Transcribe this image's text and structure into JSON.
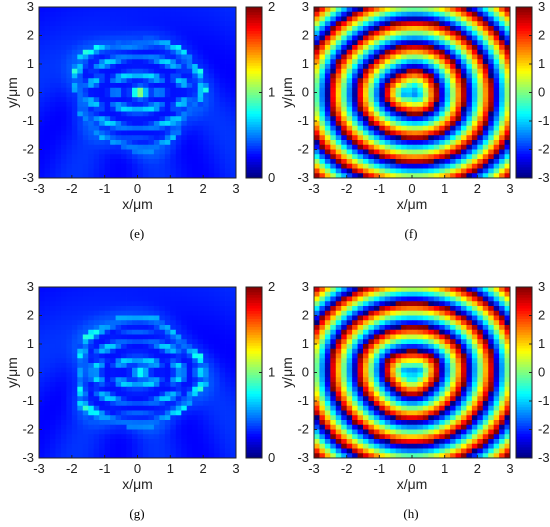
{
  "chart_data": [
    {
      "type": "heatmap",
      "panel": "(e)",
      "quantity": "amplitude",
      "xlabel": "x/μm",
      "ylabel": "y/μm",
      "xlim": [
        -3,
        3
      ],
      "ylim": [
        -3,
        3
      ],
      "xticks": [
        "-3",
        "-2",
        "-1",
        "0",
        "1",
        "2",
        "3"
      ],
      "yticks": [
        "3",
        "2",
        "1",
        "0",
        "-1",
        "-2",
        "-3"
      ],
      "colorbar": {
        "range": [
          0,
          2
        ],
        "ticks": [
          "2",
          "1",
          "0"
        ]
      },
      "colormap": "jet"
    },
    {
      "type": "heatmap",
      "panel": "(f)",
      "quantity": "phase",
      "xlabel": "x/μm",
      "ylabel": "y/μm",
      "xlim": [
        -3,
        3
      ],
      "ylim": [
        -3,
        3
      ],
      "xticks": [
        "-3",
        "-2",
        "-1",
        "0",
        "1",
        "2",
        "3"
      ],
      "yticks": [
        "3",
        "2",
        "1",
        "0",
        "-1",
        "-2",
        "-3"
      ],
      "colorbar": {
        "range": [
          -3,
          3
        ],
        "ticks": [
          "3",
          "2",
          "1",
          "0",
          "-1",
          "-2",
          "-3"
        ]
      },
      "colormap": "jet"
    },
    {
      "type": "heatmap",
      "panel": "(g)",
      "quantity": "amplitude",
      "xlabel": "x/μm",
      "ylabel": "y/μm",
      "xlim": [
        -3,
        3
      ],
      "ylim": [
        -3,
        3
      ],
      "xticks": [
        "-3",
        "-2",
        "-1",
        "0",
        "1",
        "2",
        "3"
      ],
      "yticks": [
        "3",
        "2",
        "1",
        "0",
        "-1",
        "-2",
        "-3"
      ],
      "colorbar": {
        "range": [
          0,
          2
        ],
        "ticks": [
          "2",
          "1",
          "0"
        ]
      },
      "colormap": "jet"
    },
    {
      "type": "heatmap",
      "panel": "(h)",
      "quantity": "phase",
      "xlabel": "x/μm",
      "ylabel": "y/μm",
      "xlim": [
        -3,
        3
      ],
      "ylim": [
        -3,
        3
      ],
      "xticks": [
        "-3",
        "-2",
        "-1",
        "0",
        "1",
        "2",
        "3"
      ],
      "yticks": [
        "3",
        "2",
        "1",
        "0",
        "-1",
        "-2",
        "-3"
      ],
      "colorbar": {
        "range": [
          -3,
          3
        ],
        "ticks": [
          "3",
          "2",
          "1",
          "0",
          "-1",
          "-2",
          "-3"
        ]
      },
      "colormap": "jet"
    }
  ]
}
